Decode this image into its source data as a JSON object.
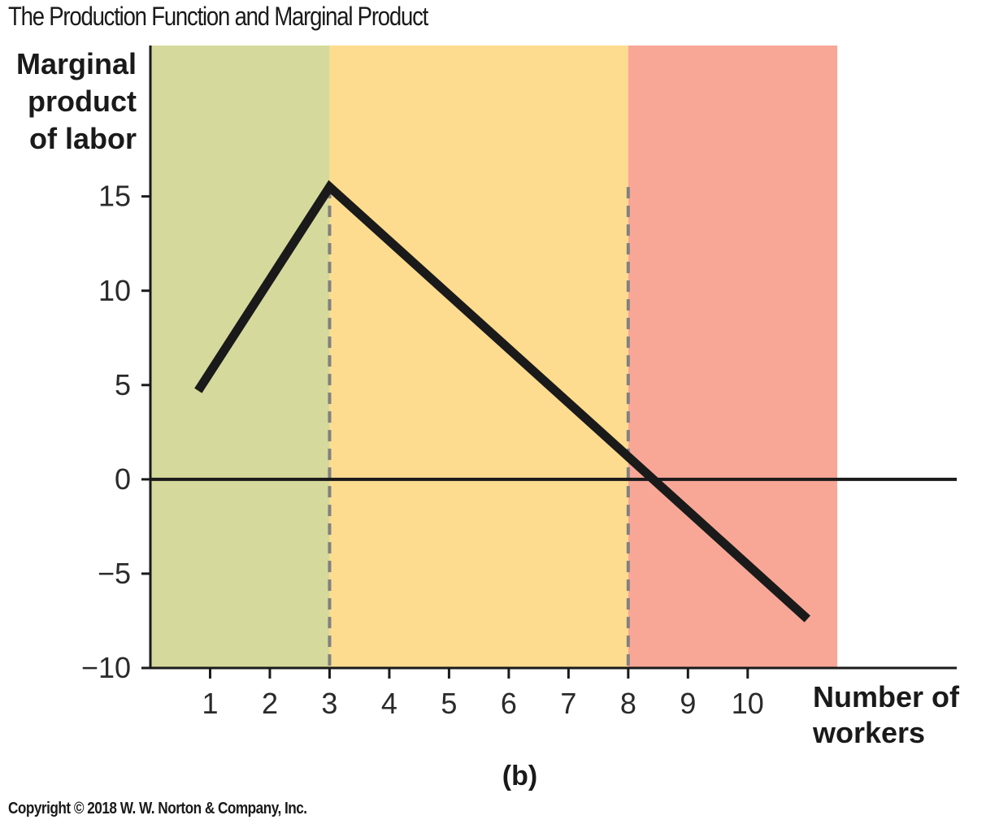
{
  "header": {
    "title": "The Production Function and Marginal Product"
  },
  "footer": {
    "panel_label": "(b)",
    "copyright": "Copyright © 2018 W. W. Norton & Company, Inc."
  },
  "chart_data": {
    "type": "line",
    "title": "The Production Function and Marginal Product",
    "ylabel_lines": [
      "Marginal",
      "product",
      "of labor"
    ],
    "xlabel_lines": [
      "Number of",
      "workers"
    ],
    "x_ticks": [
      "1",
      "2",
      "3",
      "4",
      "5",
      "6",
      "7",
      "8",
      "9",
      "10"
    ],
    "y_ticks": [
      "15",
      "10",
      "5",
      "0",
      "−5",
      "−10"
    ],
    "y_tick_values": [
      15,
      10,
      5,
      0,
      -5,
      -10
    ],
    "xlim": [
      0,
      13.5
    ],
    "ylim": [
      -10,
      23
    ],
    "series": [
      {
        "x": [
          0.8,
          3,
          8,
          11
        ],
        "y": [
          4.7,
          15.5,
          1.2,
          -7.4
        ]
      }
    ],
    "shaded_regions": [
      {
        "x_start": 0,
        "x_end": 3,
        "color": "#d5da9c"
      },
      {
        "x_start": 3,
        "x_end": 8,
        "color": "#fedc8f"
      },
      {
        "x_start": 8,
        "x_end": 11.5,
        "color": "#f8a797"
      }
    ],
    "reference_lines": [
      {
        "x": 3
      },
      {
        "x": 8
      }
    ],
    "zero_line": 0,
    "colors": {
      "curve": "#1a1a1a",
      "dashed": "#808080",
      "axis": "#1a1a1a"
    }
  }
}
